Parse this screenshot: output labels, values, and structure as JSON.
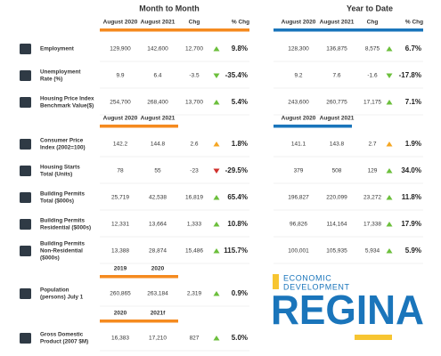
{
  "sections": [
    "Month to Month",
    "Year to Date"
  ],
  "blocks": [
    {
      "headers": {
        "m2m": [
          "August 2020",
          "August 2021",
          "Chg",
          "% Chg"
        ],
        "ytd": [
          "August 2020",
          "August 2021",
          "Chg",
          "% Chg"
        ]
      },
      "rows": [
        {
          "label": [
            "Employment"
          ],
          "m2m": [
            "129,900",
            "142,600",
            "12,700",
            "9.8%"
          ],
          "m2m_color": "#6cbf3c",
          "ytd": [
            "128,300",
            "136,875",
            "8,575",
            "6.7%"
          ],
          "ytd_color": "#6cbf3c"
        },
        {
          "label": [
            "Unemployment",
            "Rate (%)"
          ],
          "m2m": [
            "9.9",
            "6.4",
            "-3.5",
            "-35.4%"
          ],
          "m2m_color": "#6cbf3c",
          "ytd": [
            "9.2",
            "7.6",
            "-1.6",
            "-17.8%"
          ],
          "ytd_color": "#6cbf3c"
        },
        {
          "label": [
            "Housing Price Index",
            "Benchmark Value($)"
          ],
          "m2m": [
            "254,700",
            "268,400",
            "13,700",
            "5.4%"
          ],
          "m2m_color": "#6cbf3c",
          "ytd": [
            "243,600",
            "260,775",
            "17,175",
            "7.1%"
          ],
          "ytd_color": "#6cbf3c"
        }
      ]
    },
    {
      "headers": {
        "m2m": [
          "August 2020",
          "August 2021"
        ],
        "ytd": [
          "August 2020",
          "August 2021"
        ]
      },
      "rows": [
        {
          "label": [
            "Consumer Price",
            "Index (2002=100)"
          ],
          "m2m": [
            "142.2",
            "144.8",
            "2.6",
            "1.8%"
          ],
          "m2m_color": "#f5a623",
          "ytd": [
            "141.1",
            "143.8",
            "2.7",
            "1.9%"
          ],
          "ytd_color": "#f5a623"
        },
        {
          "label": [
            "Housing Starts",
            "Total (Units)"
          ],
          "m2m": [
            "78",
            "55",
            "-23",
            "-29.5%"
          ],
          "m2m_color": "#d0312d",
          "ytd": [
            "379",
            "508",
            "129",
            "34.0%"
          ],
          "ytd_color": "#6cbf3c"
        },
        {
          "label": [
            "Building Permits",
            "Total ($000s)"
          ],
          "m2m": [
            "25,719",
            "42,538",
            "16,819",
            "65.4%"
          ],
          "m2m_color": "#6cbf3c",
          "ytd": [
            "196,827",
            "220,099",
            "23,272",
            "11.8%"
          ],
          "ytd_color": "#6cbf3c"
        },
        {
          "label": [
            "Building Permits",
            "Residential ($000s)"
          ],
          "m2m": [
            "12,331",
            "13,664",
            "1,333",
            "10.8%"
          ],
          "m2m_color": "#6cbf3c",
          "ytd": [
            "96,826",
            "114,164",
            "17,338",
            "17.9%"
          ],
          "ytd_color": "#6cbf3c"
        },
        {
          "label": [
            "Building Permits",
            "Non-Residential",
            "($000s)"
          ],
          "m2m": [
            "13,388",
            "28,874",
            "15,486",
            "115.7%"
          ],
          "m2m_color": "#6cbf3c",
          "ytd": [
            "100,001",
            "105,935",
            "5,934",
            "5.9%"
          ],
          "ytd_color": "#6cbf3c"
        }
      ]
    },
    {
      "headers": {
        "m2m": [
          "2019",
          "2020"
        ]
      },
      "rows": [
        {
          "label": [
            "Population",
            "(persons) July 1"
          ],
          "m2m": [
            "260,865",
            "263,184",
            "2,319",
            "0.9%"
          ],
          "m2m_color": "#6cbf3c"
        }
      ]
    },
    {
      "headers": {
        "m2m": [
          "2020",
          "2021f"
        ]
      },
      "rows": [
        {
          "label": [
            "Gross Domestic",
            "Product (2007 $M)"
          ],
          "m2m": [
            "16,383",
            "17,210",
            "827",
            "5.0%"
          ],
          "m2m_color": "#6cbf3c"
        }
      ]
    }
  ],
  "logo": {
    "line1": "ECONOMIC",
    "line2": "DEVELOPMENT",
    "name": "REGINA"
  }
}
